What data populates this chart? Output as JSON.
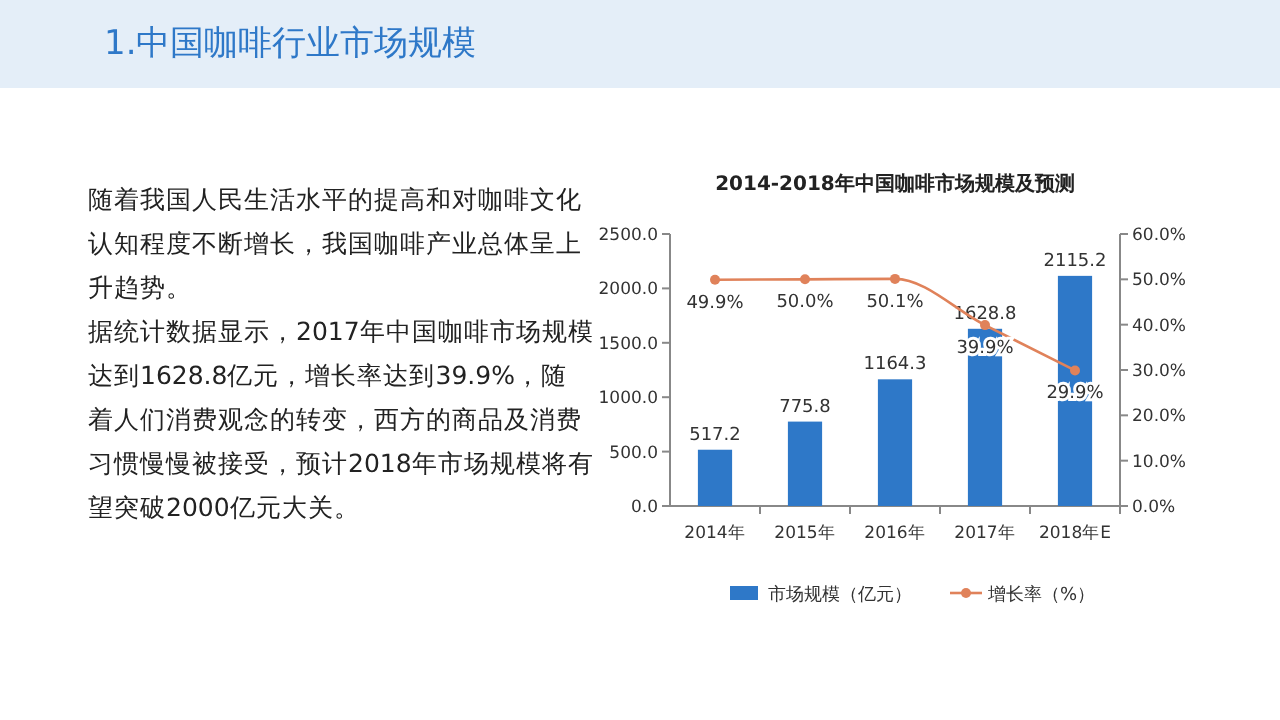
{
  "chart_data": {
    "type": "bar",
    "title": "1.中国咖啡行业市场规模",
    "subtitle": "2014-2018年中国咖啡市场规模及预测",
    "annotations": [
      "随着我国人民生活水平的提高和对咖啡文化认知程度不断增长，我国咖啡产业总体呈上升趋势。",
      "据统计数据显示，2017年中国咖啡市场规模达到1628.8亿元，增长率达到39.9%，随着人们消费观念的转变，西方的商品及消费习惯慢慢被接受，预计2018年市场规模将有望突破2000亿元大关。"
    ],
    "categories": [
      "2014年",
      "2015年",
      "2016年",
      "2017年",
      "2018年E"
    ],
    "series": [
      {
        "name": "市场规模（亿元）",
        "color": "#2e78c8",
        "values": [
          517.2,
          775.8,
          1164.3,
          1628.8,
          2115.2
        ],
        "value_labels": [
          "517.2",
          "775.8",
          "1164.3",
          "1628.8",
          "2115.2"
        ]
      },
      {
        "name": "增长率（%）",
        "type": "line",
        "axis": "y2",
        "color": "#e0825a",
        "values": [
          49.9,
          50.0,
          50.1,
          39.9,
          29.9
        ],
        "value_labels": [
          "49.9%",
          "50.0%",
          "50.1%",
          "39.9%",
          "29.9%"
        ]
      }
    ],
    "ylim": [
      0,
      2500
    ],
    "yticks": [
      {
        "value": 0,
        "label": "0.0"
      },
      {
        "value": 500,
        "label": "500.0"
      },
      {
        "value": 1000,
        "label": "1000.0"
      },
      {
        "value": 1500,
        "label": "1500.0"
      },
      {
        "value": 2000,
        "label": "2000.0"
      },
      {
        "value": 2500,
        "label": "2500.0"
      }
    ],
    "y2lim": [
      0,
      60
    ],
    "y2ticks": [
      {
        "value": 0,
        "label": "0.0%"
      },
      {
        "value": 10,
        "label": "10.0%"
      },
      {
        "value": 20,
        "label": "20.0%"
      },
      {
        "value": 30,
        "label": "30.0%"
      },
      {
        "value": 40,
        "label": "40.0%"
      },
      {
        "value": 50,
        "label": "50.0%"
      },
      {
        "value": 60,
        "label": "60.0%"
      }
    ],
    "grid": false,
    "legend": "bottom",
    "marker": "circle",
    "line_style": "solid"
  }
}
